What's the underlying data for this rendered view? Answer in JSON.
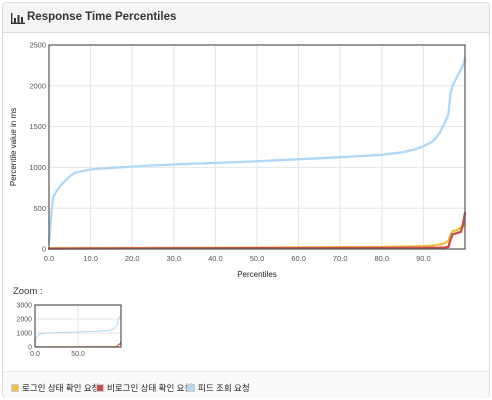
{
  "panel": {
    "title": "Response Time Percentiles",
    "icon": "bar-chart-icon"
  },
  "zoom_label": "Zoom :",
  "colors": {
    "series1": "#edc240",
    "series2": "#cb4b4b",
    "series3": "#afd8f8"
  },
  "chart_data": [
    {
      "type": "line",
      "title": "",
      "xlabel": "Percentiles",
      "ylabel": "Percentile value in ms",
      "xlim": [
        0,
        100
      ],
      "ylim": [
        0,
        2500
      ],
      "x_ticks": [
        "0.0",
        "10.0",
        "20.0",
        "30.0",
        "40.0",
        "50.0",
        "60.0",
        "70.0",
        "80.0",
        "90.0"
      ],
      "y_ticks": [
        "0",
        "500",
        "1000",
        "1500",
        "2000",
        "2500"
      ],
      "grid": true,
      "legend_position": "bottom",
      "series": [
        {
          "name": "로그인 상태 확인 요청",
          "x": [
            0,
            10,
            20,
            30,
            40,
            50,
            60,
            70,
            80,
            85,
            88,
            90,
            92,
            94,
            95,
            96,
            96.5,
            97,
            98,
            99,
            100
          ],
          "values": [
            8,
            10,
            12,
            14,
            15,
            17,
            19,
            22,
            25,
            28,
            32,
            36,
            42,
            55,
            70,
            100,
            170,
            220,
            230,
            260,
            290
          ]
        },
        {
          "name": "비로그인 상태 확인 요청",
          "x": [
            0,
            10,
            20,
            30,
            40,
            50,
            60,
            70,
            80,
            90,
            94,
            95,
            96,
            96.5,
            97,
            98,
            99,
            99.5,
            100
          ],
          "values": [
            5,
            6,
            7,
            8,
            9,
            10,
            11,
            12,
            13,
            15,
            16,
            18,
            25,
            110,
            180,
            195,
            210,
            300,
            440
          ]
        },
        {
          "name": "피드 조회 요청",
          "x": [
            0,
            0.3,
            0.6,
            1,
            2,
            3,
            4,
            5,
            6,
            7,
            8,
            10,
            15,
            20,
            25,
            30,
            35,
            40,
            45,
            50,
            55,
            60,
            65,
            70,
            75,
            80,
            85,
            88,
            90,
            92,
            93,
            94,
            95,
            96,
            96.5,
            97,
            98,
            99,
            99.5,
            100
          ],
          "values": [
            80,
            250,
            450,
            640,
            720,
            790,
            840,
            890,
            930,
            945,
            955,
            975,
            995,
            1010,
            1025,
            1035,
            1045,
            1055,
            1065,
            1075,
            1088,
            1100,
            1112,
            1125,
            1140,
            1155,
            1185,
            1220,
            1260,
            1310,
            1360,
            1430,
            1530,
            1650,
            1900,
            2000,
            2100,
            2200,
            2250,
            2330
          ]
        }
      ]
    },
    {
      "type": "line",
      "title": "Zoom",
      "xlim": [
        0,
        100
      ],
      "ylim": [
        0,
        3000
      ],
      "x_ticks": [
        "0.0",
        "50.0"
      ],
      "y_ticks": [
        "0",
        "1000",
        "2000",
        "3000"
      ],
      "grid": true,
      "series_ref": "same as main chart"
    }
  ]
}
